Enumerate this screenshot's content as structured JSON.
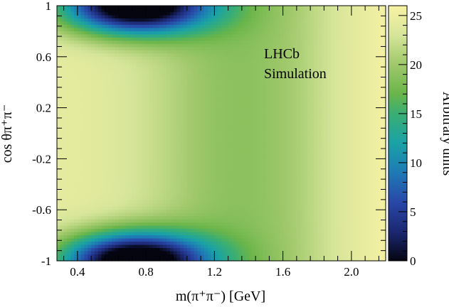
{
  "chart_data": {
    "type": "heatmap",
    "title": "",
    "xlabel": "m(π⁺π⁻) [GeV]",
    "ylabel": "cos θπ⁺π⁻",
    "colorbar_label": "Arbitrary units",
    "annotations": [
      "LHCb",
      "Simulation"
    ],
    "xlim": [
      0.28,
      2.2
    ],
    "ylim": [
      -1,
      1
    ],
    "zlim": [
      0,
      26
    ],
    "x_ticks": [
      0.4,
      0.8,
      1.2,
      1.6,
      2.0
    ],
    "x_tick_labels": [
      "0.4",
      "0.8",
      "1.2",
      "1.6",
      "2.0"
    ],
    "y_ticks": [
      -1,
      -0.6,
      -0.2,
      0.2,
      0.6,
      1
    ],
    "y_tick_labels": [
      "-1",
      "-0.6",
      "-0.2",
      "0.2",
      "0.6",
      "1"
    ],
    "z_ticks": [
      0,
      5,
      10,
      15,
      20,
      25
    ],
    "z_tick_labels": [
      "0",
      "5",
      "10",
      "15",
      "20",
      "25"
    ],
    "colormap": [
      {
        "value": 0,
        "color": "#050510"
      },
      {
        "value": 3,
        "color": "#1c2872"
      },
      {
        "value": 6,
        "color": "#2848a8"
      },
      {
        "value": 9,
        "color": "#1e7ab5"
      },
      {
        "value": 12,
        "color": "#1aa2a6"
      },
      {
        "value": 15,
        "color": "#3aae73"
      },
      {
        "value": 17,
        "color": "#6ab54a"
      },
      {
        "value": 20,
        "color": "#9fc86a"
      },
      {
        "value": 23,
        "color": "#d6e59a"
      },
      {
        "value": 26,
        "color": "#f8f2a4"
      }
    ],
    "grid": false
  }
}
